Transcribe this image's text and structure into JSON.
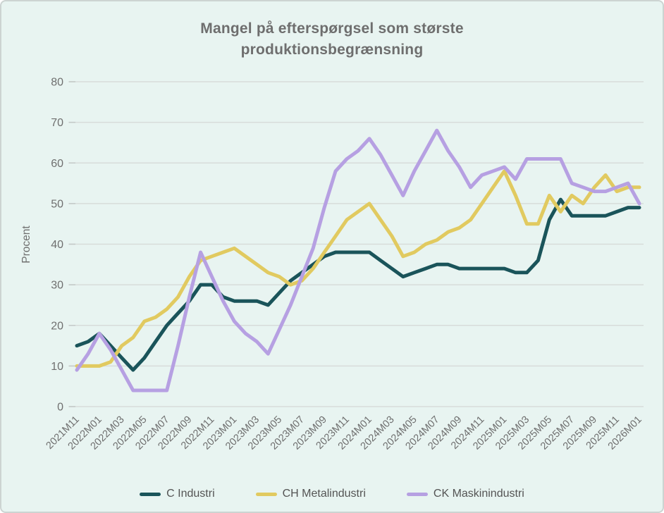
{
  "frame": {
    "background": "#e8f4f1",
    "border_color": "#ccd4d2"
  },
  "title": "Mangel på efterspørgsel som største produktionsbegrænsning",
  "chart_data": {
    "type": "line",
    "title": "Mangel på efterspørgsel som største produktionsbegrænsning",
    "xlabel": "",
    "ylabel": "Procent",
    "ylim": [
      0,
      80
    ],
    "ytick_step": 10,
    "yticks": [
      0,
      10,
      20,
      30,
      40,
      50,
      60,
      70,
      80
    ],
    "grid": "horizontal",
    "legend_position": "bottom",
    "grid_color": "#d7dcda",
    "tick_text_color": "#6f6f6f",
    "x": [
      "2021M11",
      "2021M12",
      "2022M01",
      "2022M02",
      "2022M03",
      "2022M04",
      "2022M05",
      "2022M06",
      "2022M07",
      "2022M08",
      "2022M09",
      "2022M10",
      "2022M11",
      "2022M12",
      "2023M01",
      "2023M02",
      "2023M03",
      "2023M04",
      "2023M05",
      "2023M06",
      "2023M07",
      "2023M08",
      "2023M09",
      "2023M10",
      "2023M11",
      "2023M12",
      "2024M01",
      "2024M02",
      "2024M03",
      "2024M04",
      "2024M05",
      "2024M06",
      "2024M07",
      "2024M08",
      "2024M09",
      "2024M10",
      "2024M11",
      "2024M12",
      "2025M01",
      "2025M02",
      "2025M03",
      "2025M04",
      "2025M05",
      "2025M06",
      "2025M07",
      "2025M08",
      "2025M09",
      "2025M10",
      "2025M11",
      "2025M12",
      "2026M01"
    ],
    "xtick_labels": [
      "2021M11",
      "2022M01",
      "2022M03",
      "2022M05",
      "2022M07",
      "2022M09",
      "2022M11",
      "2023M01",
      "2023M03",
      "2023M05",
      "2023M07",
      "2023M09",
      "2023M11",
      "2024M01",
      "2024M03",
      "2024M05",
      "2024M07",
      "2024M09",
      "2024M11",
      "2025M01",
      "2025M03",
      "2025M05",
      "2025M07",
      "2025M09",
      "2025M11",
      "2026M01"
    ],
    "series": [
      {
        "name": "C Industri",
        "color": "#1a545a",
        "values": [
          15,
          16,
          18,
          15,
          12,
          9,
          12,
          16,
          20,
          23,
          26,
          30,
          30,
          27,
          26,
          26,
          26,
          25,
          28,
          31,
          33,
          35,
          37,
          38,
          38,
          38,
          38,
          36,
          34,
          32,
          33,
          34,
          35,
          35,
          34,
          34,
          34,
          34,
          34,
          33,
          33,
          36,
          46,
          51,
          47,
          47,
          47,
          47,
          48,
          49,
          49
        ]
      },
      {
        "name": "CH Metalindustri",
        "color": "#e1ca60",
        "values": [
          10,
          10,
          10,
          11,
          15,
          17,
          21,
          22,
          24,
          27,
          32,
          36,
          37,
          38,
          39,
          37,
          35,
          33,
          32,
          30,
          31,
          34,
          38,
          42,
          46,
          48,
          50,
          46,
          42,
          37,
          38,
          40,
          41,
          43,
          44,
          46,
          50,
          54,
          58,
          52,
          45,
          45,
          52,
          48,
          52,
          50,
          54,
          57,
          53,
          54,
          54
        ]
      },
      {
        "name": "CK Maskinindustri",
        "color": "#b6a0e2",
        "values": [
          9,
          13,
          18,
          14,
          9,
          4,
          4,
          4,
          4,
          15,
          27,
          38,
          32,
          26,
          21,
          18,
          16,
          13,
          19,
          25,
          32,
          39,
          49,
          58,
          61,
          63,
          66,
          62,
          57,
          52,
          58,
          63,
          68,
          63,
          59,
          54,
          57,
          58,
          59,
          56,
          61,
          61,
          61,
          61,
          55,
          54,
          53,
          53,
          54,
          55,
          50
        ]
      }
    ]
  },
  "legend": {
    "items": [
      {
        "label": "C Industri",
        "color": "#1a545a"
      },
      {
        "label": "CH Metalindustri",
        "color": "#e1ca60"
      },
      {
        "label": "CK Maskinindustri",
        "color": "#b6a0e2"
      }
    ]
  }
}
